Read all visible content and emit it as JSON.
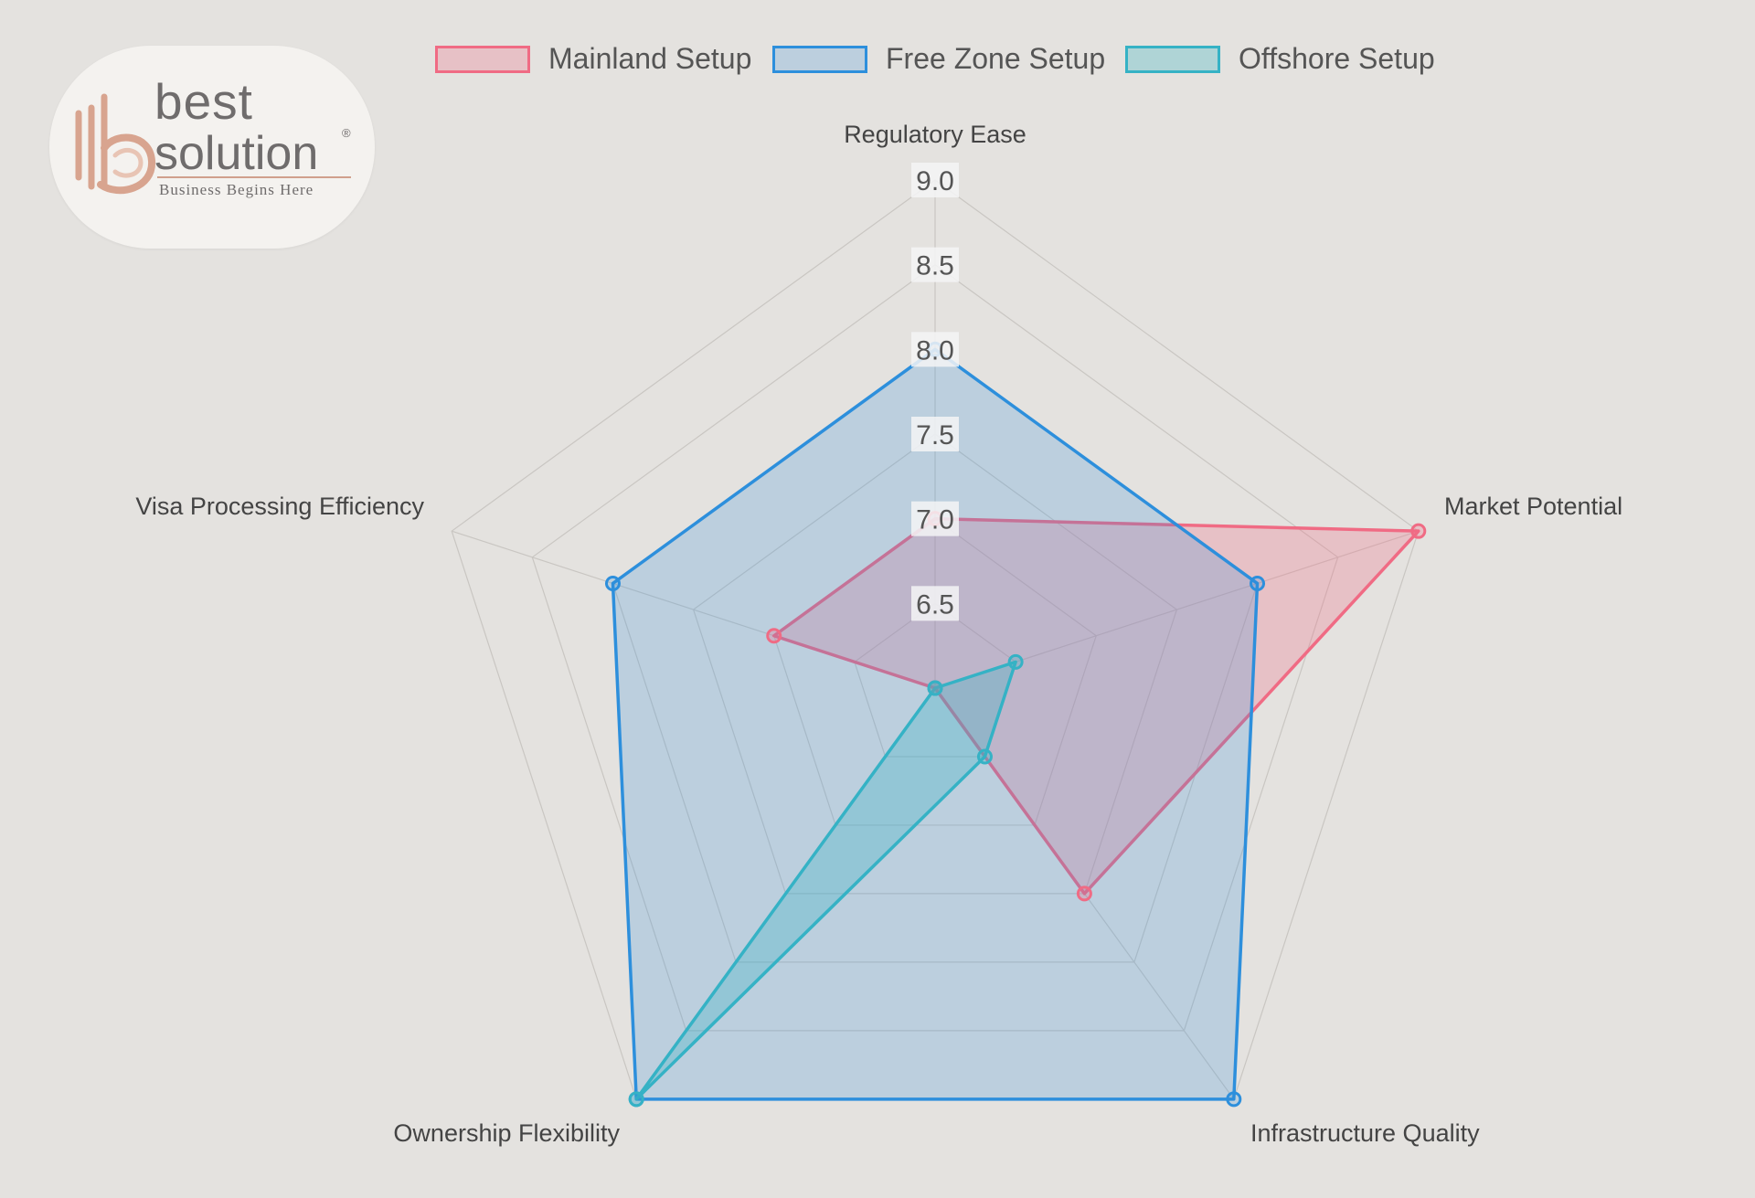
{
  "logo": {
    "line1": "best",
    "line2": "solution",
    "registered": "®",
    "tagline": "Business Begins Here",
    "color": "#6f6c6c",
    "mark_color": "#d8a48f"
  },
  "chart_data": {
    "type": "radar",
    "axes": [
      "Regulatory Ease",
      "Market Potential",
      "Infrastructure Quality",
      "Ownership Flexibility",
      "Visa Processing Efficiency"
    ],
    "r_ticks": [
      "6.5",
      "7.0",
      "7.5",
      "8.0",
      "8.5",
      "9.0"
    ],
    "r_range": [
      6.0,
      9.0
    ],
    "series": [
      {
        "name": "Mainland Setup",
        "values": [
          7.0,
          9.0,
          7.5,
          6.0,
          7.0
        ],
        "stroke": "#f06b84",
        "fill": "rgba(240,107,132,0.28)"
      },
      {
        "name": "Free Zone Setup",
        "values": [
          8.0,
          8.0,
          9.0,
          9.0,
          8.0
        ],
        "stroke": "#2d8fdc",
        "fill": "rgba(45,143,220,0.22)"
      },
      {
        "name": "Offshore Setup",
        "values": [
          6.0,
          6.5,
          6.5,
          9.0,
          6.0
        ],
        "stroke": "#35b2c5",
        "fill": "rgba(53,178,197,0.30)"
      }
    ],
    "legend_position": "top",
    "grid": true
  }
}
